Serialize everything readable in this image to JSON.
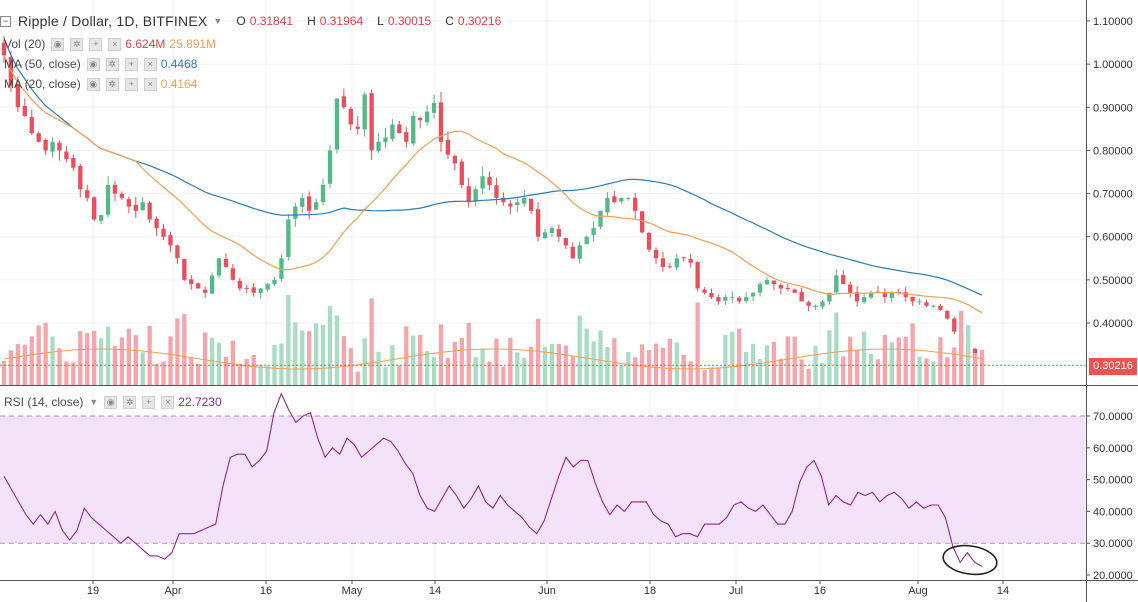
{
  "header": {
    "title": "Ripple / Dollar, 1D, BITFINEX",
    "ohlc": [
      {
        "k": "O",
        "v": "0.31841"
      },
      {
        "k": "H",
        "v": "0.31964"
      },
      {
        "k": "L",
        "v": "0.30015"
      },
      {
        "k": "C",
        "v": "0.30216"
      }
    ]
  },
  "indicators": {
    "vol": {
      "label": "Vol (20)",
      "v1": "6.624M",
      "v2": "25.891M"
    },
    "ma50": {
      "label": "MA (50, close)",
      "value": "0.4468"
    },
    "ma20": {
      "label": "MA (20, close)",
      "value": "0.4164"
    },
    "rsi": {
      "label": "RSI (14, close)",
      "value": "22.7230"
    }
  },
  "colors": {
    "up": "#53b987",
    "down": "#eb4d5c",
    "vol_up": "#a9dcc3",
    "vol_down": "#f5a6ad",
    "ma50": "#2f7cae",
    "ma20": "#f2a055",
    "rsi": "#8e2a8e",
    "rsi_band": "#f3e2f8",
    "last_price": "#ef5350"
  },
  "price_axis": {
    "ticks": [
      "1.10000",
      "1.00000",
      "0.90000",
      "0.80000",
      "0.70000",
      "0.60000",
      "0.50000",
      "0.40000"
    ]
  },
  "last_price_label": "0.30216",
  "rsi_axis": {
    "ticks": [
      "70.0000",
      "60.0000",
      "50.0000",
      "40.0000",
      "30.0000",
      "20.0000"
    ]
  },
  "time_axis": {
    "labels": [
      "19",
      "Apr",
      "16",
      "May",
      "14",
      "Jun",
      "18",
      "Jul",
      "16",
      "Aug",
      "14"
    ]
  },
  "chart_data": {
    "type": "candlestick",
    "symbol": "Ripple / Dollar",
    "interval": "1D",
    "exchange": "BITFINEX",
    "price_range": [
      0.28,
      1.11
    ],
    "rsi_range": [
      19,
      77
    ],
    "rsi_bands": [
      30,
      70
    ],
    "x_axis_labels": [
      "19",
      "Apr",
      "16",
      "May",
      "14",
      "Jun",
      "18",
      "Jul",
      "16",
      "Aug",
      "14"
    ],
    "close": [
      1.02,
      0.95,
      0.9,
      0.88,
      0.84,
      0.82,
      0.8,
      0.82,
      0.8,
      0.78,
      0.76,
      0.71,
      0.69,
      0.64,
      0.65,
      0.72,
      0.7,
      0.69,
      0.67,
      0.66,
      0.68,
      0.64,
      0.62,
      0.6,
      0.58,
      0.55,
      0.5,
      0.49,
      0.48,
      0.47,
      0.51,
      0.55,
      0.53,
      0.5,
      0.48,
      0.48,
      0.47,
      0.48,
      0.49,
      0.5,
      0.55,
      0.64,
      0.67,
      0.69,
      0.66,
      0.68,
      0.72,
      0.8,
      0.92,
      0.9,
      0.86,
      0.85,
      0.93,
      0.8,
      0.82,
      0.83,
      0.86,
      0.84,
      0.82,
      0.88,
      0.87,
      0.89,
      0.91,
      0.82,
      0.79,
      0.77,
      0.72,
      0.68,
      0.71,
      0.74,
      0.72,
      0.69,
      0.68,
      0.67,
      0.68,
      0.69,
      0.66,
      0.6,
      0.61,
      0.62,
      0.6,
      0.58,
      0.55,
      0.58,
      0.6,
      0.62,
      0.66,
      0.69,
      0.68,
      0.69,
      0.69,
      0.66,
      0.61,
      0.57,
      0.55,
      0.53,
      0.53,
      0.55,
      0.55,
      0.54,
      0.48,
      0.47,
      0.46,
      0.45,
      0.46,
      0.46,
      0.45,
      0.46,
      0.47,
      0.49,
      0.5,
      0.49,
      0.48,
      0.48,
      0.47,
      0.45,
      0.44,
      0.44,
      0.45,
      0.47,
      0.51,
      0.49,
      0.47,
      0.45,
      0.46,
      0.47,
      0.47,
      0.46,
      0.47,
      0.47,
      0.46,
      0.45,
      0.45,
      0.44,
      0.44,
      0.43,
      0.41,
      0.38,
      0.33,
      0.34,
      0.32,
      0.302
    ],
    "volume_scale_hint": "relative",
    "rsi": [
      51,
      47,
      43,
      39,
      36,
      39,
      36,
      40,
      34,
      31,
      34,
      41,
      38,
      36,
      34,
      32,
      30,
      32,
      30,
      28,
      26,
      26,
      25,
      27,
      33,
      33,
      33,
      34,
      35,
      36,
      48,
      57,
      58,
      58,
      54,
      56,
      59,
      71,
      77,
      72,
      68,
      70,
      71,
      63,
      57,
      60,
      58,
      63,
      61,
      57,
      59,
      61,
      63,
      62,
      59,
      55,
      52,
      45,
      41,
      40,
      44,
      48,
      45,
      41,
      44,
      48,
      43,
      41,
      45,
      42,
      40,
      38,
      35,
      33,
      37,
      44,
      51,
      57,
      54,
      56,
      56,
      49,
      43,
      39,
      42,
      40,
      43,
      43,
      43,
      39,
      37,
      36,
      32,
      33,
      33,
      32,
      36,
      36,
      36,
      38,
      42,
      43,
      41,
      40,
      42,
      39,
      36,
      36,
      40,
      49,
      54,
      56,
      51,
      42,
      45,
      43,
      42,
      46,
      45,
      46,
      43,
      45,
      46,
      44,
      41,
      43,
      41,
      42,
      42,
      38,
      29,
      24,
      27,
      24,
      22.7
    ]
  }
}
